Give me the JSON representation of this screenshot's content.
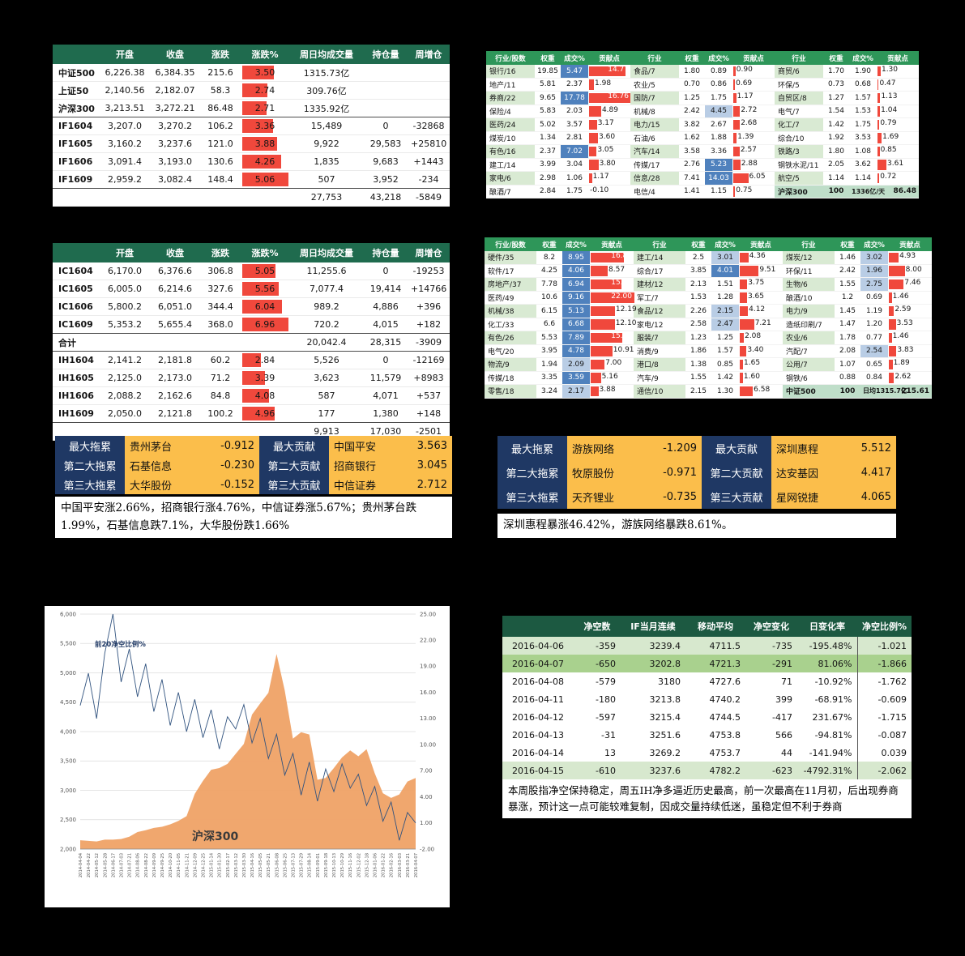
{
  "colors": {
    "page_bg": "#000000",
    "accent_red_bar": "#F0483C",
    "accent_blue_cell": "#4F81BD",
    "accent_blue_light": "#B9CDE5",
    "green_header_dark": "#1F6B4E",
    "green_header_mid": "#2E9659",
    "green_header_net": "#1C5941",
    "green_row_light": "#D9EAD3",
    "green_row_mid": "#A9D18E",
    "summary_green": "#BFDEC9",
    "navy": "#1F3864",
    "gold": "#FBBE4B",
    "chart_area": "#EFA266",
    "chart_line": "#31537F"
  },
  "if_table": {
    "headers": [
      "",
      "开盘",
      "收盘",
      "涨跌",
      "涨跌%",
      "周日均成交量",
      "持仓量",
      "周增仓"
    ],
    "rows": [
      {
        "cells": [
          "中证500",
          "6,226.38",
          "6,384.35",
          "215.6",
          "3.50",
          "1315.73亿",
          "",
          ""
        ],
        "divider": false
      },
      {
        "cells": [
          "上证50",
          "2,140.56",
          "2,182.07",
          "58.3",
          "2.74",
          "309.76亿",
          "",
          ""
        ],
        "divider": false
      },
      {
        "cells": [
          "沪深300",
          "3,213.51",
          "3,272.21",
          "86.48",
          "2.71",
          "1335.92亿",
          "",
          ""
        ],
        "divider": true
      },
      {
        "cells": [
          "IF1604",
          "3,207.0",
          "3,270.2",
          "106.2",
          "3.36",
          "15,489",
          "0",
          "-32868"
        ],
        "divider": false
      },
      {
        "cells": [
          "IF1605",
          "3,160.2",
          "3,237.6",
          "121.0",
          "3.88",
          "9,922",
          "29,583",
          "+25810"
        ],
        "divider": false
      },
      {
        "cells": [
          "IF1606",
          "3,091.4",
          "3,193.0",
          "130.6",
          "4.26",
          "1,835",
          "9,683",
          "+1443"
        ],
        "divider": false
      },
      {
        "cells": [
          "IF1609",
          "2,959.2",
          "3,082.4",
          "148.4",
          "5.06",
          "507",
          "3,952",
          "-234"
        ],
        "divider": true
      },
      {
        "cells": [
          "",
          "",
          "",
          "",
          "",
          "27,753",
          "43,218",
          "-5849"
        ],
        "divider": false
      }
    ]
  },
  "icih_table": {
    "headers": [
      "",
      "开盘",
      "收盘",
      "涨跌",
      "涨跌%",
      "周日均成交量",
      "持仓量",
      "周增仓"
    ],
    "rows": [
      {
        "cells": [
          "IC1604",
          "6,170.0",
          "6,376.6",
          "306.8",
          "5.05",
          "11,255.6",
          "0",
          "-19253"
        ],
        "divider": false
      },
      {
        "cells": [
          "IC1605",
          "6,005.0",
          "6,214.6",
          "327.6",
          "5.56",
          "7,077.4",
          "19,414",
          "+14766"
        ],
        "divider": false
      },
      {
        "cells": [
          "IC1606",
          "5,800.2",
          "6,051.0",
          "344.4",
          "6.04",
          "989.2",
          "4,886",
          "+396"
        ],
        "divider": false
      },
      {
        "cells": [
          "IC1609",
          "5,353.2",
          "5,655.4",
          "368.0",
          "6.96",
          "720.2",
          "4,015",
          "+182"
        ],
        "divider": true
      },
      {
        "cells": [
          "合计",
          "",
          "",
          "",
          "",
          "20,042.4",
          "28,315",
          "-3909"
        ],
        "divider": true
      },
      {
        "cells": [
          "IH1604",
          "2,141.2",
          "2,181.8",
          "60.2",
          "2.84",
          "5,526",
          "0",
          "-12169"
        ],
        "divider": false
      },
      {
        "cells": [
          "IH1605",
          "2,125.0",
          "2,173.0",
          "71.2",
          "3.39",
          "3,623",
          "11,579",
          "+8983"
        ],
        "divider": false
      },
      {
        "cells": [
          "IH1606",
          "2,088.2",
          "2,162.6",
          "84.8",
          "4.08",
          "587",
          "4,071",
          "+537"
        ],
        "divider": false
      },
      {
        "cells": [
          "IH1609",
          "2,050.0",
          "2,121.8",
          "100.2",
          "4.96",
          "177",
          "1,380",
          "+148"
        ],
        "divider": true
      },
      {
        "cells": [
          "",
          "",
          "",
          "",
          "",
          "9,913",
          "17,030",
          "-2501"
        ],
        "divider": false
      }
    ]
  },
  "hs300_industry": {
    "blue_min": 5.0,
    "light_min": 4.4,
    "bar_max": 17,
    "groups": [
      {
        "headers": [
          "行业/股数",
          "权重",
          "成交%",
          "贡献点"
        ],
        "rows": [
          [
            "银行/16",
            "19.85",
            "5.47",
            "14.77"
          ],
          [
            "地产/11",
            "5.81",
            "2.37",
            "1.98"
          ],
          [
            "券商/22",
            "9.65",
            "17.78",
            "16.76"
          ],
          [
            "保险/4",
            "5.83",
            "2.03",
            "4.89"
          ],
          [
            "医药/24",
            "5.02",
            "3.57",
            "3.17"
          ],
          [
            "煤炭/10",
            "1.34",
            "2.81",
            "3.60"
          ],
          [
            "有色/16",
            "2.37",
            "7.02",
            "3.05"
          ],
          [
            "建工/14",
            "3.99",
            "3.04",
            "3.80"
          ],
          [
            "家电/6",
            "2.98",
            "1.06",
            "1.17"
          ],
          [
            "酿酒/7",
            "2.84",
            "1.75",
            "-0.10"
          ]
        ]
      },
      {
        "headers": [
          "行业",
          "权重",
          "成交%",
          "贡献点"
        ],
        "rows": [
          [
            "食品/7",
            "1.80",
            "0.89",
            "0.90"
          ],
          [
            "农业/5",
            "0.70",
            "0.86",
            "0.69"
          ],
          [
            "国防/7",
            "1.25",
            "1.75",
            "1.17"
          ],
          [
            "机械/8",
            "2.42",
            "4.45",
            "2.72"
          ],
          [
            "电力/15",
            "3.82",
            "2.67",
            "2.68"
          ],
          [
            "石油/6",
            "1.62",
            "1.88",
            "1.39"
          ],
          [
            "汽车/14",
            "3.58",
            "3.36",
            "2.57"
          ],
          [
            "传媒/17",
            "2.76",
            "5.23",
            "2.88"
          ],
          [
            "信息/28",
            "7.41",
            "14.03",
            "6.05"
          ],
          [
            "电信/4",
            "1.41",
            "1.15",
            "0.75"
          ]
        ]
      },
      {
        "headers": [
          "行业",
          "权重",
          "成交%",
          "贡献点"
        ],
        "rows": [
          [
            "商贸/6",
            "1.70",
            "1.90",
            "1.30"
          ],
          [
            "环保/5",
            "0.73",
            "0.68",
            "0.47"
          ],
          [
            "自贸区/8",
            "1.27",
            "1.57",
            "1.13"
          ],
          [
            "电气/7",
            "1.54",
            "1.53",
            "1.04"
          ],
          [
            "化工/7",
            "1.42",
            "1.75",
            "0.79"
          ],
          [
            "综合/10",
            "1.92",
            "3.53",
            "1.69"
          ],
          [
            "铁路/3",
            "1.80",
            "1.08",
            "0.85"
          ],
          [
            "钢铁水泥/11",
            "2.05",
            "3.62",
            "3.61"
          ],
          [
            "航空/5",
            "1.14",
            "1.14",
            "0.72"
          ]
        ],
        "summary": [
          "沪深300",
          "100",
          "1336亿/天",
          "86.48"
        ]
      }
    ]
  },
  "csi500_industry": {
    "blue_min": 3.5,
    "light_min": 1.9,
    "bar_max": 22,
    "groups": [
      {
        "headers": [
          "行业/股数",
          "权重",
          "成交%",
          "贡献点"
        ],
        "rows": [
          [
            "硬件/35",
            "8.2",
            "8.95",
            "16.88"
          ],
          [
            "软件/17",
            "4.25",
            "4.06",
            "8.57"
          ],
          [
            "房地产/37",
            "7.78",
            "6.94",
            "15.52"
          ],
          [
            "医药/49",
            "10.6",
            "9.16",
            "22.00"
          ],
          [
            "机械/38",
            "6.15",
            "5.13",
            "12.19"
          ],
          [
            "化工/33",
            "6.6",
            "6.68",
            "12.10"
          ],
          [
            "有色/26",
            "5.53",
            "7.89",
            "15.80"
          ],
          [
            "电气/20",
            "3.95",
            "4.78",
            "10.91"
          ],
          [
            "物流/9",
            "1.94",
            "2.09",
            "7.00"
          ],
          [
            "传媒/18",
            "3.35",
            "3.59",
            "5.16"
          ],
          [
            "零售/18",
            "3.24",
            "2.17",
            "3.88"
          ]
        ]
      },
      {
        "headers": [
          "行业",
          "权重",
          "成交%",
          "贡献点"
        ],
        "rows": [
          [
            "建工/14",
            "2.5",
            "3.01",
            "4.36"
          ],
          [
            "综合/17",
            "3.85",
            "4.01",
            "9.51"
          ],
          [
            "建材/12",
            "2.13",
            "1.51",
            "3.75"
          ],
          [
            "军工/7",
            "1.53",
            "1.28",
            "3.65"
          ],
          [
            "食品/12",
            "2.26",
            "2.15",
            "4.12"
          ],
          [
            "家电/12",
            "2.58",
            "2.47",
            "7.21"
          ],
          [
            "服装/7",
            "1.23",
            "1.25",
            "2.08"
          ],
          [
            "消费/9",
            "1.86",
            "1.57",
            "3.40"
          ],
          [
            "港口/8",
            "1.38",
            "0.85",
            "1.65"
          ],
          [
            "汽车/9",
            "1.55",
            "1.42",
            "1.60"
          ],
          [
            "通信/10",
            "2.15",
            "1.30",
            "6.58"
          ]
        ]
      },
      {
        "headers": [
          "行业",
          "权重",
          "成交%",
          "贡献点"
        ],
        "rows": [
          [
            "煤炭/12",
            "1.46",
            "3.02",
            "4.93"
          ],
          [
            "环保/11",
            "2.42",
            "1.96",
            "8.00"
          ],
          [
            "生物/6",
            "1.55",
            "2.75",
            "7.46"
          ],
          [
            "酿酒/10",
            "1.2",
            "0.69",
            "1.46"
          ],
          [
            "电力/9",
            "1.45",
            "1.19",
            "2.59"
          ],
          [
            "造纸印刷/7",
            "1.47",
            "1.20",
            "3.53"
          ],
          [
            "农业/6",
            "1.78",
            "0.77",
            "1.46"
          ],
          [
            "汽配/7",
            "2.08",
            "2.54",
            "3.83"
          ],
          [
            "公用/7",
            "1.07",
            "0.65",
            "1.89"
          ],
          [
            "钢铁/6",
            "0.88",
            "0.84",
            "2.62"
          ]
        ],
        "summary": [
          "中证500",
          "100",
          "日均1315.7亿",
          "215.61"
        ]
      }
    ]
  },
  "hs300_movers": {
    "rows": [
      {
        "drag_label": "最大拖累",
        "drag_name": "贵州茅台",
        "drag_val": "-0.912",
        "contrib_label": "最大贡献",
        "contrib_name": "中国平安",
        "contrib_val": "3.563"
      },
      {
        "drag_label": "第二大拖累",
        "drag_name": "石基信息",
        "drag_val": "-0.230",
        "contrib_label": "第二大贡献",
        "contrib_name": "招商银行",
        "contrib_val": "3.045"
      },
      {
        "drag_label": "第三大拖累",
        "drag_name": "大华股份",
        "drag_val": "-0.152",
        "contrib_label": "第三大贡献",
        "contrib_name": "中信证券",
        "contrib_val": "2.712"
      }
    ],
    "note": "中国平安涨2.66%，招商银行涨4.76%，中信证券涨5.67%；贵州茅台跌1.99%，石基信息跌7.1%，大华股份跌1.66%"
  },
  "csi500_movers": {
    "rows": [
      {
        "drag_label": "最大拖累",
        "drag_name": "游族网络",
        "drag_val": "-1.209",
        "contrib_label": "最大贡献",
        "contrib_name": "深圳惠程",
        "contrib_val": "5.512"
      },
      {
        "drag_label": "第二大拖累",
        "drag_name": "牧原股份",
        "drag_val": "-0.971",
        "contrib_label": "第二大贡献",
        "contrib_name": "达安基因",
        "contrib_val": "4.417"
      },
      {
        "drag_label": "第三大拖累",
        "drag_name": "天齐锂业",
        "drag_val": "-0.735",
        "contrib_label": "第三大贡献",
        "contrib_name": "星网锐捷",
        "contrib_val": "4.065"
      }
    ],
    "note": "深圳惠程暴涨46.42%，游族网络暴跌8.61%。"
  },
  "net_short": {
    "headers": [
      "",
      "净空数",
      "IF当月连续",
      "移动平均",
      "净空变化",
      "日变化率",
      "净空比例%"
    ],
    "rows": [
      {
        "cells": [
          "2016-04-06",
          "-359",
          "3239.4",
          "4711.5",
          "-735",
          "-195.48%",
          "-1.021"
        ],
        "shade": "g1"
      },
      {
        "cells": [
          "2016-04-07",
          "-650",
          "3202.8",
          "4721.3",
          "-291",
          "81.06%",
          "-1.866"
        ],
        "shade": "g2"
      },
      {
        "cells": [
          "2016-04-08",
          "-579",
          "3180",
          "4727.6",
          "71",
          "-10.92%",
          "-1.762"
        ],
        "shade": "w"
      },
      {
        "cells": [
          "2016-04-11",
          "-180",
          "3213.8",
          "4740.2",
          "399",
          "-68.91%",
          "-0.609"
        ],
        "shade": "w"
      },
      {
        "cells": [
          "2016-04-12",
          "-597",
          "3215.4",
          "4744.5",
          "-417",
          "231.67%",
          "-1.715"
        ],
        "shade": "w"
      },
      {
        "cells": [
          "2016-04-13",
          "-31",
          "3251.6",
          "4753.8",
          "566",
          "-94.81%",
          "-0.087"
        ],
        "shade": "w"
      },
      {
        "cells": [
          "2016-04-14",
          "13",
          "3269.2",
          "4753.7",
          "44",
          "-141.94%",
          "0.039"
        ],
        "shade": "w"
      },
      {
        "cells": [
          "2016-04-15",
          "-610",
          "3237.6",
          "4782.2",
          "-623",
          "-4792.31%",
          "-2.062"
        ],
        "shade": "g1"
      }
    ],
    "note": "本周股指净空保持稳定，周五IH净多逼近历史最高，前一次最高在11月初，后出现券商暴涨，预计这一点可能较难复制，因成交量持续低迷，虽稳定但不利于券商"
  },
  "chart_data": {
    "type": "line",
    "title": "",
    "legend_position": "none",
    "grid": true,
    "left_axis": {
      "min": 2000,
      "max": 6000,
      "tick_values": [
        2000,
        2500,
        3000,
        3500,
        4000,
        4500,
        5000,
        5500,
        6000
      ],
      "ticks": [
        "2,000",
        "2,500",
        "3,000",
        "3,500",
        "4,000",
        "4,500",
        "5,000",
        "5,500",
        "6,000"
      ]
    },
    "right_axis": {
      "min": -2,
      "max": 25,
      "tick_values": [
        -2,
        1,
        4,
        7,
        10,
        13,
        16,
        19,
        22,
        25
      ],
      "ticks": [
        "-2.00",
        "1.00",
        "4.00",
        "7.00",
        "10.00",
        "13.00",
        "16.00",
        "19.00",
        "22.00",
        "25.00"
      ]
    },
    "x": [
      "2014-04-04",
      "2014-04-22",
      "2014-05-12",
      "2014-05-28",
      "2014-06-17",
      "2014-07-03",
      "2014-07-21",
      "2014-08-06",
      "2014-08-22",
      "2014-09-09",
      "2014-09-25",
      "2014-10-20",
      "2014-11-05",
      "2014-11-21",
      "2014-12-09",
      "2014-12-25",
      "2015-01-14",
      "2015-01-30",
      "2015-02-17",
      "2015-03-12",
      "2015-03-30",
      "2015-04-16",
      "2015-05-05",
      "2015-05-21",
      "2015-06-08",
      "2015-06-25",
      "2015-07-13",
      "2015-07-29",
      "2015-08-14",
      "2015-09-01",
      "2015-09-18",
      "2015-10-13",
      "2015-10-29",
      "2015-11-16",
      "2015-12-02",
      "2015-12-18",
      "2016-01-06",
      "2016-01-22",
      "2016-02-16",
      "2016-03-03",
      "2016-03-21",
      "2016-04-07"
    ],
    "series": [
      {
        "name": "沪深300",
        "type": "area",
        "axis": "left",
        "color": "#EFA266",
        "values": [
          2150,
          2140,
          2130,
          2160,
          2160,
          2170,
          2210,
          2290,
          2320,
          2360,
          2380,
          2420,
          2480,
          2560,
          2940,
          3160,
          3350,
          3380,
          3450,
          3620,
          3790,
          4290,
          4480,
          4660,
          5320,
          4700,
          3880,
          3990,
          3950,
          3180,
          3210,
          3380,
          3560,
          3680,
          3580,
          3700,
          3290,
          2950,
          2870,
          2930,
          3150,
          3210
        ]
      },
      {
        "name": "前20净空比例%",
        "type": "line",
        "axis": "right",
        "color": "#31537F",
        "values": [
          14.5,
          18.2,
          13.0,
          20.5,
          25.0,
          17.2,
          21.0,
          15.5,
          19.3,
          13.8,
          17.5,
          12.2,
          16.0,
          11.5,
          15.2,
          10.8,
          14.0,
          9.5,
          13.2,
          11.8,
          14.6,
          10.2,
          13.0,
          8.4,
          11.2,
          6.5,
          9.0,
          4.2,
          8.0,
          3.5,
          7.2,
          4.6,
          7.8,
          5.0,
          6.6,
          3.0,
          5.2,
          1.2,
          3.4,
          -1.0,
          2.2,
          1.0
        ]
      }
    ],
    "annotations": [
      {
        "text": "前20净空比例%",
        "color": "#1F3864"
      },
      {
        "text": "沪深300",
        "color": "#3A3A3A"
      }
    ]
  }
}
